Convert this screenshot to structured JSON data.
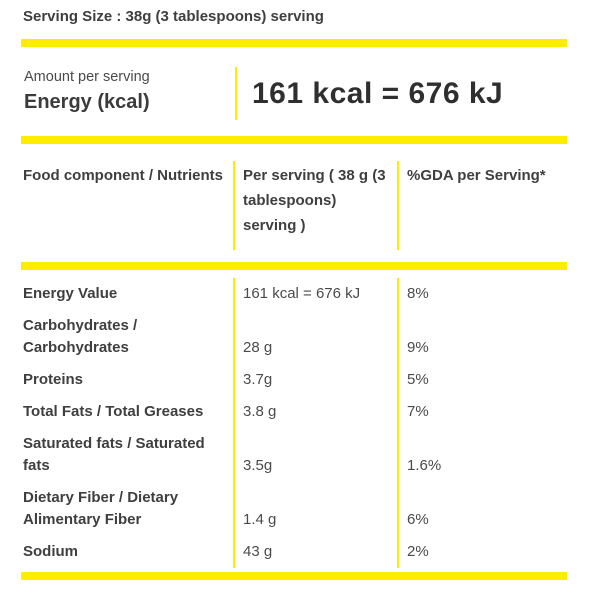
{
  "colors": {
    "accent_yellow": "#ffed00",
    "text_dark": "#3f3f3f",
    "text_value": "#4b4b4b",
    "background": "#ffffff"
  },
  "serving_size_title": "Serving Size : 38g (3 tablespoons) serving",
  "energy": {
    "amount_label": "Amount per serving",
    "name": "Energy (kcal)",
    "value": "161 kcal = 676 kJ"
  },
  "table": {
    "headers": [
      "Food component / Nutrients",
      "Per serving ( 38 g (3 tablespoons) serving )",
      "%GDA per Serving*"
    ],
    "rows": [
      {
        "nutrient": "Energy Value",
        "per_serving": "161 kcal = 676 kJ",
        "gda": "8%"
      },
      {
        "nutrient": "Carbohydrates / Carbohydrates",
        "per_serving": "28 g",
        "gda": "9%"
      },
      {
        "nutrient": "Proteins",
        "per_serving": "3.7g",
        "gda": "5%"
      },
      {
        "nutrient": "Total Fats / Total Greases",
        "per_serving": "3.8 g",
        "gda": "7%"
      },
      {
        "nutrient": "Saturated fats / Saturated fats",
        "per_serving": "3.5g",
        "gda": "1.6%"
      },
      {
        "nutrient": "Dietary Fiber / Dietary Alimentary Fiber",
        "per_serving": "1.4 g",
        "gda": "6%"
      },
      {
        "nutrient": "Sodium",
        "per_serving": "43 g",
        "gda": "2%"
      }
    ]
  }
}
